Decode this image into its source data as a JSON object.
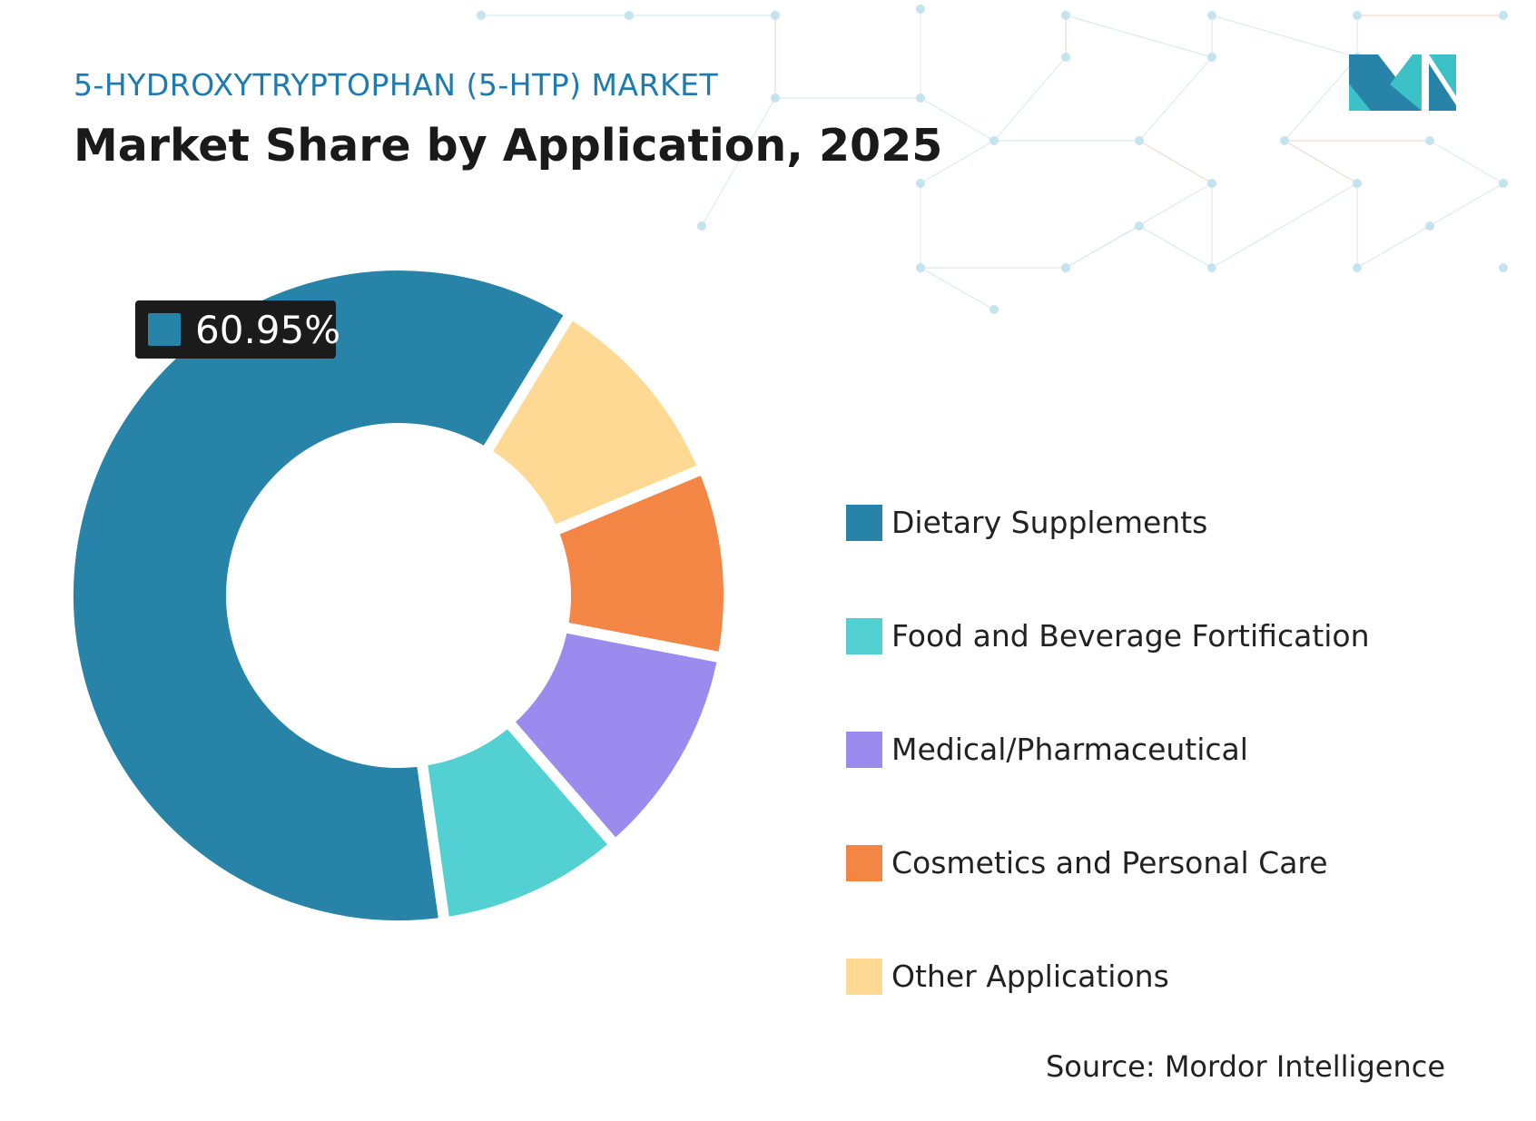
{
  "header": {
    "eyebrow": "5-HYDROXYTRYPTOPHAN (5-HTP) MARKET",
    "title": "Market Share by Application, 2025"
  },
  "chart_data": {
    "type": "pie",
    "variant": "donut",
    "title": "Market Share by Application, 2025",
    "unit": "%",
    "categories": [
      "Dietary Supplements",
      "Food and Beverage Fortification",
      "Medical/Pharmaceutical",
      "Cosmetics and Personal Care",
      "Other Applications"
    ],
    "values": [
      60.95,
      9.15,
      10.6,
      9.3,
      10.0
    ],
    "colors": [
      "#2783a8",
      "#53d0d2",
      "#9b8bef",
      "#f38545",
      "#fed993"
    ],
    "data_label": "60.95%",
    "legend_position": "right"
  },
  "source": "Source: Mordor Intelligence",
  "logo": {
    "text": "MI",
    "colors": [
      "#2783a8",
      "#3cc2c6"
    ]
  }
}
